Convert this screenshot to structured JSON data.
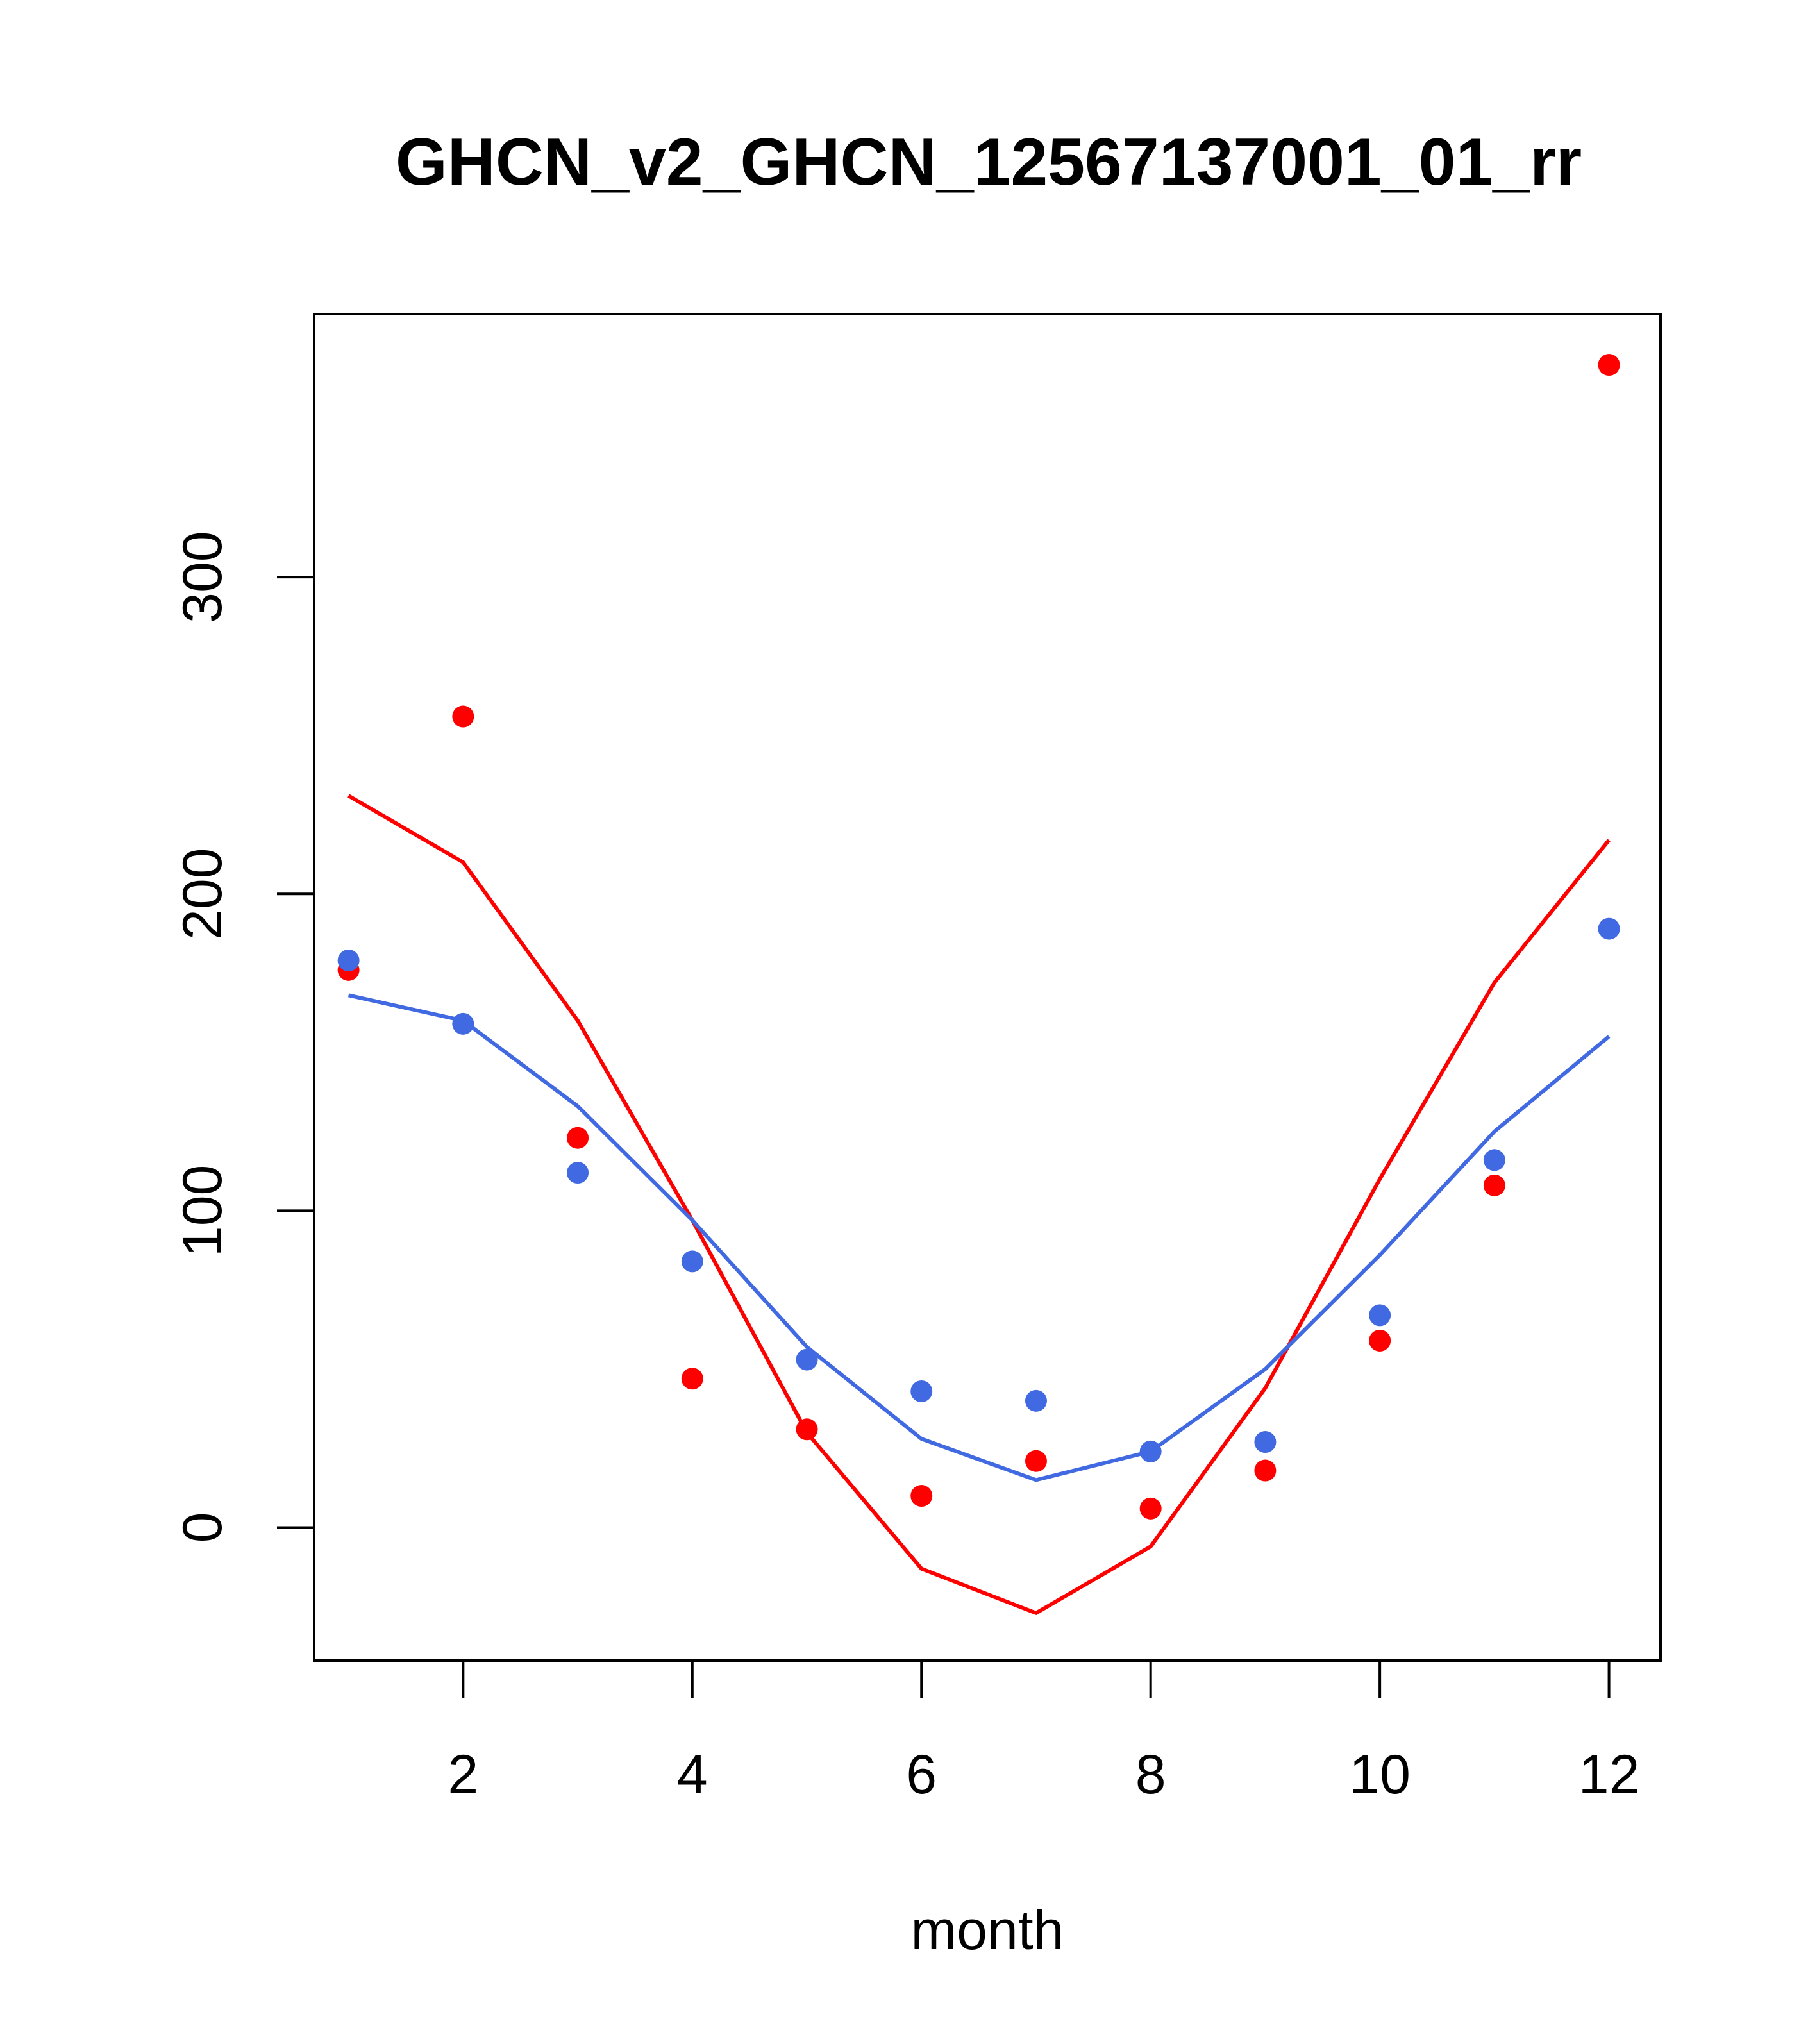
{
  "chart_data": {
    "type": "scatter",
    "title": "GHCN_v2_GHCN_12567137001_01_rr",
    "xlabel": "month",
    "ylabel": "",
    "xlim": [
      0.7,
      12.45
    ],
    "ylim": [
      -42,
      383
    ],
    "x_ticks": [
      2,
      4,
      6,
      8,
      10,
      12
    ],
    "x_tick_labels": [
      "2",
      "4",
      "6",
      "8",
      "10",
      "12"
    ],
    "y_ticks": [
      0,
      100,
      200,
      300
    ],
    "y_tick_labels": [
      "0",
      "100",
      "200",
      "300"
    ],
    "grid": false,
    "legend": "none",
    "x": [
      1,
      2,
      3,
      4,
      5,
      6,
      7,
      8,
      9,
      10,
      11,
      12
    ],
    "series": [
      {
        "kind": "points",
        "color": "#ff0000",
        "values": [
          176,
          256,
          123,
          47,
          31,
          10,
          21,
          6,
          18,
          59,
          108,
          367
        ]
      },
      {
        "kind": "points",
        "color": "#4169e1",
        "values": [
          179,
          159,
          112,
          84,
          53,
          43,
          40,
          24,
          27,
          67,
          116,
          189
        ]
      },
      {
        "kind": "line",
        "color": "#ff0000",
        "values": [
          231,
          210,
          160,
          97,
          30,
          -13,
          -27,
          -6,
          44,
          110,
          172,
          217
        ]
      },
      {
        "kind": "line",
        "color": "#4169e1",
        "values": [
          168,
          160,
          133,
          97,
          57,
          28,
          15,
          24,
          50,
          86,
          125,
          155
        ]
      }
    ]
  }
}
